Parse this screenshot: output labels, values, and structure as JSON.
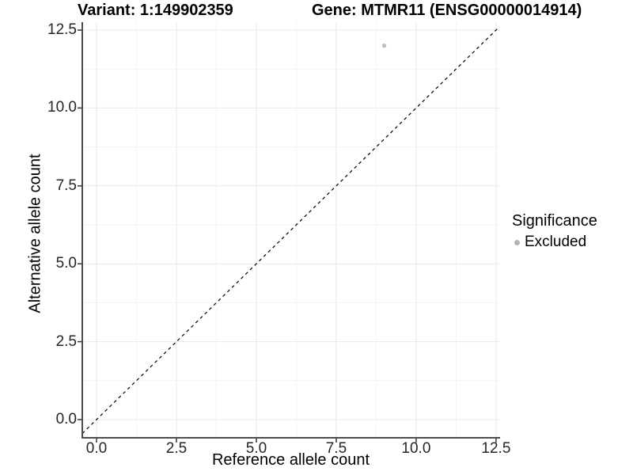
{
  "chart_data": {
    "type": "scatter",
    "title_left": "Variant: 1:149902359",
    "title_right": "Gene: MTMR11 (ENSG00000014914)",
    "xlabel": "Reference allele count",
    "ylabel": "Alternative allele count",
    "xlim": [
      -0.4455,
      12.601
    ],
    "ylim": [
      -0.5842,
      12.7541
    ],
    "x_ticks": [
      0,
      2.5,
      5,
      7.5,
      10,
      12.5
    ],
    "x_tick_labels": [
      "0.0",
      "2.5",
      "5.0",
      "7.5",
      "10.0",
      "12.5"
    ],
    "y_ticks": [
      0,
      2.5,
      5,
      7.5,
      10,
      12.5
    ],
    "y_tick_labels": [
      "0.0",
      "2.5",
      "5.0",
      "7.5",
      "10.0",
      "12.5"
    ],
    "grid": {
      "major_color": "#e8e8e8",
      "minor_color": "#f3f3f3",
      "minor_at_midpoints": true
    },
    "identity_line": {
      "show": true,
      "color": "#000000",
      "dash": [
        4,
        4
      ],
      "width": 1.2
    },
    "points": [
      {
        "x": 9,
        "y": 12,
        "significance": "Excluded",
        "color": "#bebebe",
        "radius": 2.7
      }
    ],
    "legend": {
      "title": "Significance",
      "items": [
        {
          "label": "Excluded",
          "color": "#b4b4b4"
        }
      ],
      "position": "right"
    },
    "axis_color": "#4d4d4d",
    "tick_color": "#333333",
    "background": "#ffffff"
  }
}
